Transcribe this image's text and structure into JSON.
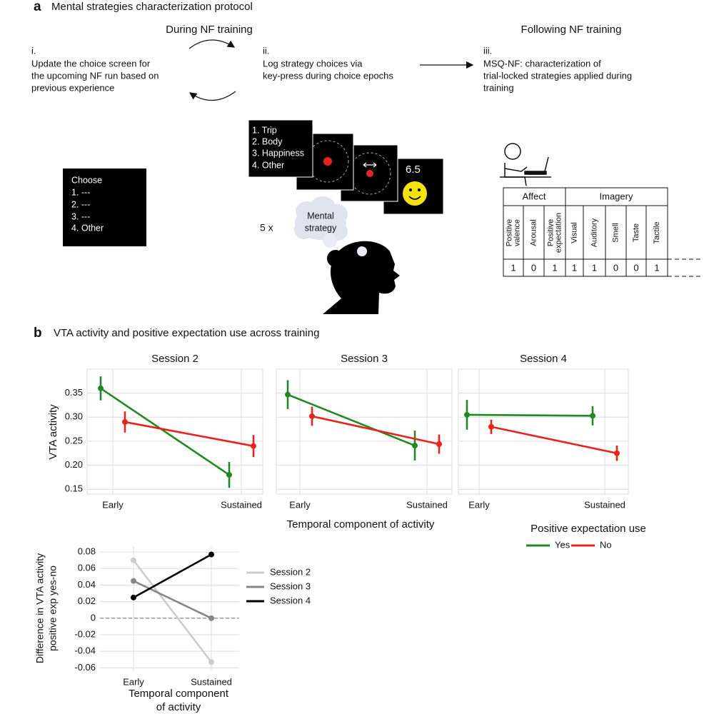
{
  "panel_a": {
    "label": "a",
    "title": "Mental strategies characterization protocol",
    "during_heading": "During NF training",
    "following_heading": "Following NF training",
    "steps": [
      {
        "number": "i.",
        "lines": [
          "Update the choice screen for",
          "the upcoming NF run based on",
          "previous experience"
        ]
      },
      {
        "number": "ii.",
        "lines": [
          "Log strategy choices via",
          "key-press during choice epochs"
        ]
      },
      {
        "number": "iii.",
        "lines": [
          "MSQ-NF: characterization of",
          "trial-locked strategies applied during",
          "training"
        ]
      }
    ],
    "choice_screen": [
      "Choose",
      "1. ---",
      "2. ---",
      "3. ---",
      "4. Other"
    ],
    "strategy_screen": [
      "1. Trip",
      "2. Body",
      "3. Happiness",
      "4. Other"
    ],
    "feedback_value": "6.5",
    "repeat": "5 x",
    "cloud": [
      "Mental",
      "strategy"
    ],
    "table": {
      "groups": [
        "Affect",
        "Imagery"
      ],
      "columns": [
        [
          "Positive",
          "valence"
        ],
        [
          "Arousal"
        ],
        [
          "Positive",
          "expectation"
        ],
        [
          "Visual"
        ],
        [
          "Auditory"
        ],
        [
          "Smell"
        ],
        [
          "Taste"
        ],
        [
          "Tactile"
        ]
      ],
      "row": [
        1,
        0,
        1,
        1,
        1,
        0,
        0,
        1
      ]
    }
  },
  "panel_b": {
    "label": "b",
    "title": "VTA activity and positive expectation use across training"
  },
  "chart_data": [
    {
      "type": "line",
      "title": "Session 2",
      "ylabel": "VTA activity",
      "xlabel": "Temporal component of activity",
      "legend_title": "Positive expectation use",
      "categories": [
        "Early",
        "Sustained"
      ],
      "series": [
        {
          "name": "Yes",
          "color": "#1f8a24",
          "values": [
            0.36,
            0.18
          ],
          "errors": [
            0.025,
            0.027
          ]
        },
        {
          "name": "No",
          "color": "#e8231c",
          "values": [
            0.29,
            0.24
          ],
          "errors": [
            0.022,
            0.023
          ]
        }
      ],
      "ylim": [
        0.14,
        0.4
      ],
      "yticks": [
        0.15,
        {
          "value": 0.2,
          "label": "0.20"
        },
        0.25,
        {
          "value": 0.3,
          "label": "0.30"
        },
        0.35
      ],
      "grid": true
    },
    {
      "type": "line",
      "title": "Session 3",
      "categories": [
        "Early",
        "Sustained"
      ],
      "series": [
        {
          "color": "#1f8a24",
          "values": [
            0.347,
            0.241
          ],
          "errors": [
            0.03,
            0.031
          ]
        },
        {
          "color": "#e8231c",
          "values": [
            0.302,
            0.244
          ],
          "errors": [
            0.02,
            0.02
          ]
        }
      ],
      "ylim": [
        0.14,
        0.4
      ],
      "yticks": [
        0.15,
        0.2,
        0.25,
        0.3,
        0.35
      ],
      "ytick_labels": false,
      "grid": true
    },
    {
      "type": "line",
      "title": "Session 4",
      "categories": [
        "Early",
        "Sustained"
      ],
      "series": [
        {
          "color": "#1f8a24",
          "values": [
            0.305,
            0.303
          ],
          "errors": [
            0.031,
            0.02
          ]
        },
        {
          "color": "#e8231c",
          "values": [
            0.28,
            0.225
          ],
          "errors": [
            0.015,
            0.016
          ]
        }
      ],
      "ylim": [
        0.14,
        0.4
      ],
      "yticks": [
        0.15,
        0.2,
        0.25,
        0.3,
        0.35
      ],
      "ytick_labels": false,
      "grid": true
    },
    {
      "type": "line",
      "ylabel": [
        "Difference in VTA activity",
        "positive exp yes-no"
      ],
      "xlabel": [
        "Temporal component",
        "of activity"
      ],
      "categories": [
        "Early",
        "Sustained"
      ],
      "series": [
        {
          "name": "Session 2",
          "color": "#cccccc",
          "values": [
            0.07,
            -0.053
          ]
        },
        {
          "name": "Session 3",
          "color": "#888888",
          "values": [
            0.045,
            0.0
          ]
        },
        {
          "name": "Session 4",
          "color": "#000000",
          "values": [
            0.025,
            0.077
          ]
        }
      ],
      "ylim": [
        -0.064,
        0.087
      ],
      "yticks": [
        0.08,
        0.06,
        0.04,
        0.02,
        0,
        -0.02,
        -0.04,
        -0.06
      ],
      "reference_line": 0,
      "grid": true
    }
  ]
}
